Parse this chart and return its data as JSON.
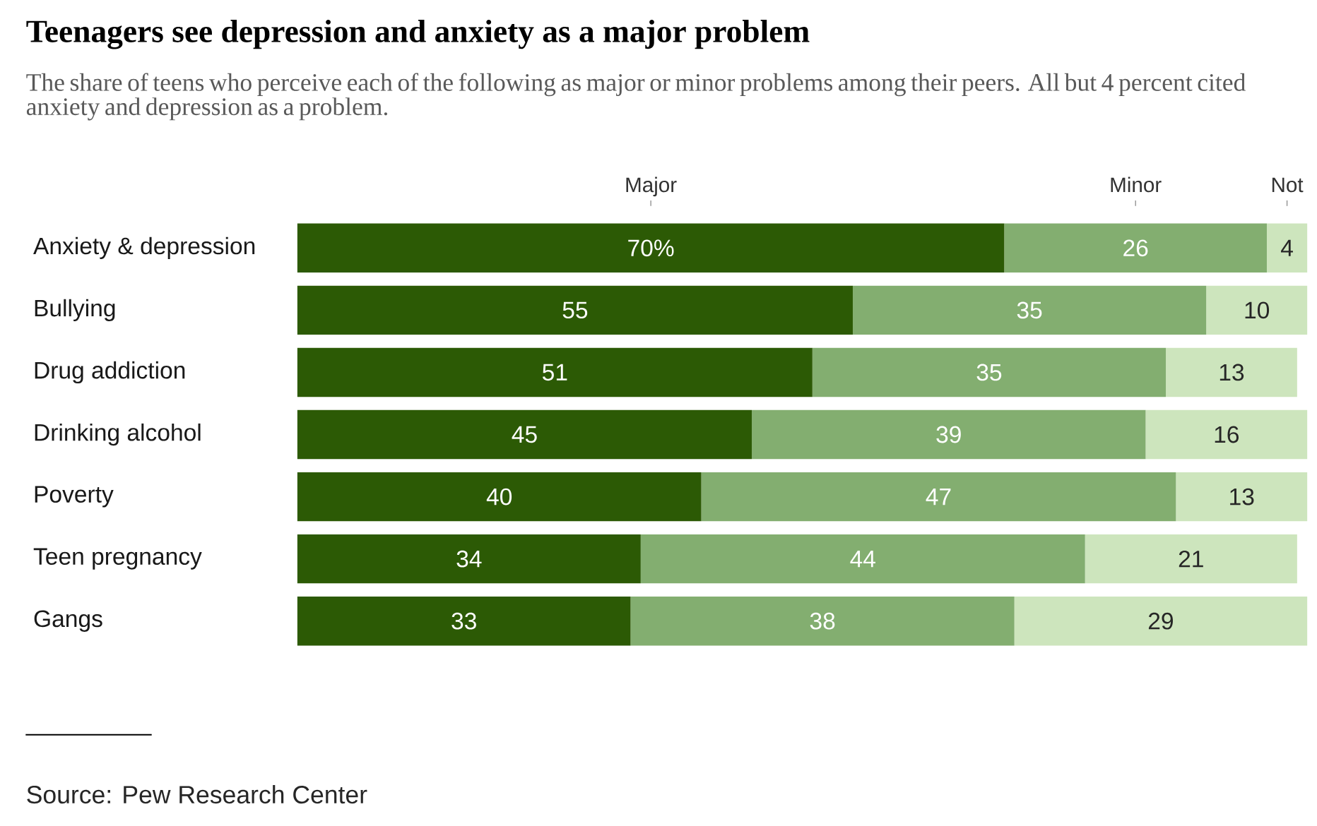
{
  "chart_data": {
    "type": "bar",
    "orientation": "horizontal",
    "stacked": true,
    "title": "Teenagers see depression and anxiety as a major problem",
    "subtitle": "The share of teens who perceive each of the following as major or minor problems among their peers. All but 4 percent cited anxiety and depression as a problem.",
    "categories": [
      "Anxiety & depression",
      "Bullying",
      "Drug addiction",
      "Drinking alcohol",
      "Poverty",
      "Teen pregnancy",
      "Gangs"
    ],
    "series": [
      {
        "name": "Major",
        "color": "#2c5a05",
        "values": [
          70,
          55,
          51,
          45,
          40,
          34,
          33
        ],
        "value_labels": [
          "70%",
          "55",
          "51",
          "45",
          "40",
          "34",
          "33"
        ]
      },
      {
        "name": "Minor",
        "color": "#83ae70",
        "values": [
          26,
          35,
          35,
          39,
          47,
          44,
          38
        ],
        "value_labels": [
          "26",
          "35",
          "35",
          "39",
          "47",
          "44",
          "38"
        ]
      },
      {
        "name": "Not",
        "color": "#cde5bd",
        "values": [
          4,
          10,
          13,
          16,
          13,
          21,
          29
        ],
        "value_labels": [
          "4",
          "10",
          "13",
          "16",
          "13",
          "21",
          "29"
        ]
      }
    ],
    "annotations": [
      "Source: Pew Research Center"
    ]
  }
}
